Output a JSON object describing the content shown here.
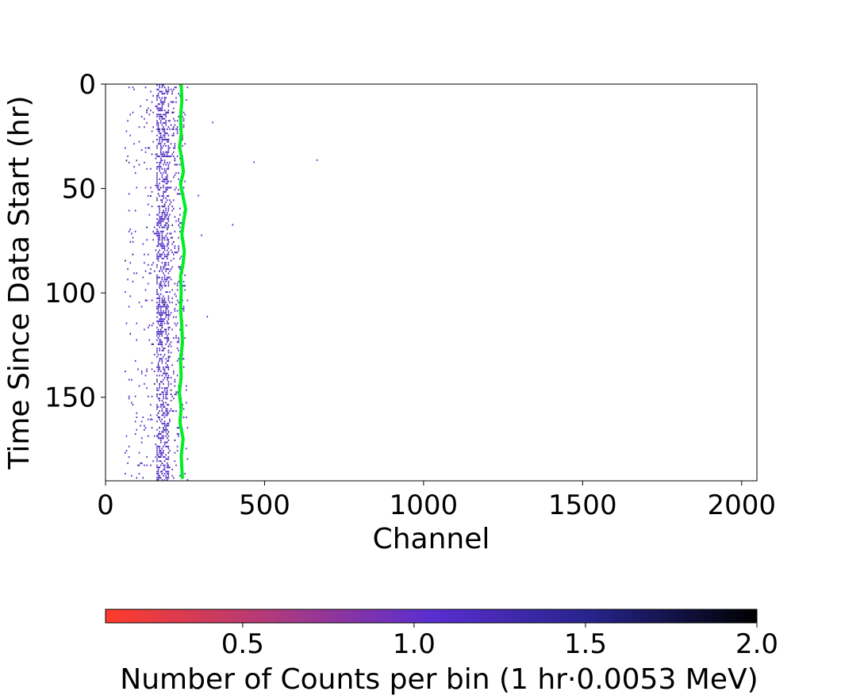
{
  "chart_data": {
    "type": "heatmap",
    "title": "",
    "xlabel": "Channel",
    "ylabel": "Time Since Data Start (hr)",
    "xlim": [
      0,
      2048
    ],
    "ylim": [
      190,
      0
    ],
    "y_inverted": true,
    "xticks": [
      0,
      500,
      1000,
      1500,
      2000
    ],
    "yticks": [
      0,
      50,
      100,
      150
    ],
    "colorbar": {
      "label": "Number of Counts per bin (1 hr·0.0053 MeV)",
      "range": [
        0.1,
        2.0
      ],
      "ticks": [
        0.5,
        1.0,
        1.5,
        2.0
      ],
      "colors": [
        "#ff3b2a",
        "#b23a7a",
        "#5a2ed0",
        "#26238a",
        "#000000"
      ]
    },
    "bin_width_channels": 4,
    "bin_height_hours": 1,
    "cell_color": "#5530c8",
    "dense_band_channels": [
      160,
      200
    ],
    "sparse_band_channels": [
      60,
      260
    ],
    "outlier_points": [
      {
        "channel": 335,
        "time": 18
      },
      {
        "channel": 465,
        "time": 37
      },
      {
        "channel": 663,
        "time": 36
      },
      {
        "channel": 398,
        "time": 67
      },
      {
        "channel": 318,
        "time": 111
      },
      {
        "channel": 300,
        "time": 72
      },
      {
        "channel": 290,
        "time": 53
      }
    ],
    "peak_line": {
      "color": "#00ee22",
      "points": [
        [
          238,
          0
        ],
        [
          240,
          8
        ],
        [
          236,
          16
        ],
        [
          238,
          24
        ],
        [
          233,
          30
        ],
        [
          240,
          36
        ],
        [
          245,
          42
        ],
        [
          236,
          48
        ],
        [
          244,
          54
        ],
        [
          252,
          60
        ],
        [
          245,
          66
        ],
        [
          240,
          72
        ],
        [
          248,
          80
        ],
        [
          244,
          86
        ],
        [
          236,
          92
        ],
        [
          238,
          100
        ],
        [
          236,
          108
        ],
        [
          240,
          116
        ],
        [
          242,
          124
        ],
        [
          236,
          132
        ],
        [
          238,
          140
        ],
        [
          232,
          148
        ],
        [
          238,
          155
        ],
        [
          234,
          162
        ],
        [
          244,
          170
        ],
        [
          238,
          178
        ],
        [
          240,
          184
        ],
        [
          242,
          189
        ]
      ]
    }
  }
}
